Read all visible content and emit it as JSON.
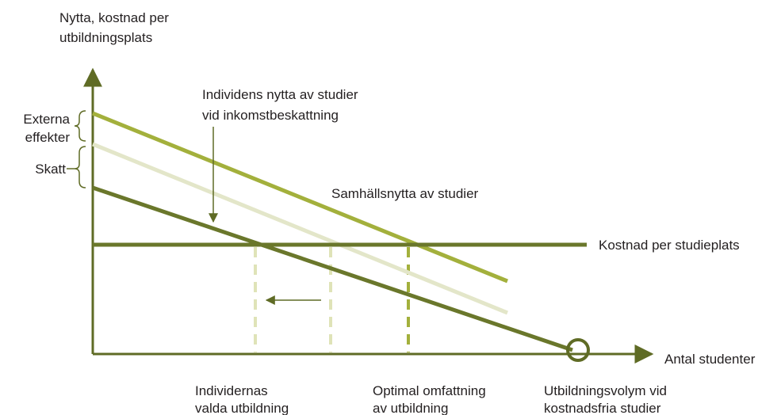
{
  "y_axis_label": [
    "Nytta, kostnad per",
    "utbildningsplats"
  ],
  "x_axis_label": "Antal studenter",
  "brackets": {
    "external": [
      "Externa",
      "effekter"
    ],
    "tax": "Skatt"
  },
  "annotations": {
    "individual_benefit": [
      "Individens nytta av studier",
      "vid inkomstbeskattning"
    ],
    "social_benefit": "Samhällsnytta av studier",
    "cost": "Kostnad per studieplats"
  },
  "bottom_labels": [
    [
      "Individernas",
      "valda utbildning"
    ],
    [
      "Optimal omfattning",
      "av utbildning"
    ],
    [
      "Utbildningsvolym vid",
      "kostnadsfria studier"
    ]
  ]
}
